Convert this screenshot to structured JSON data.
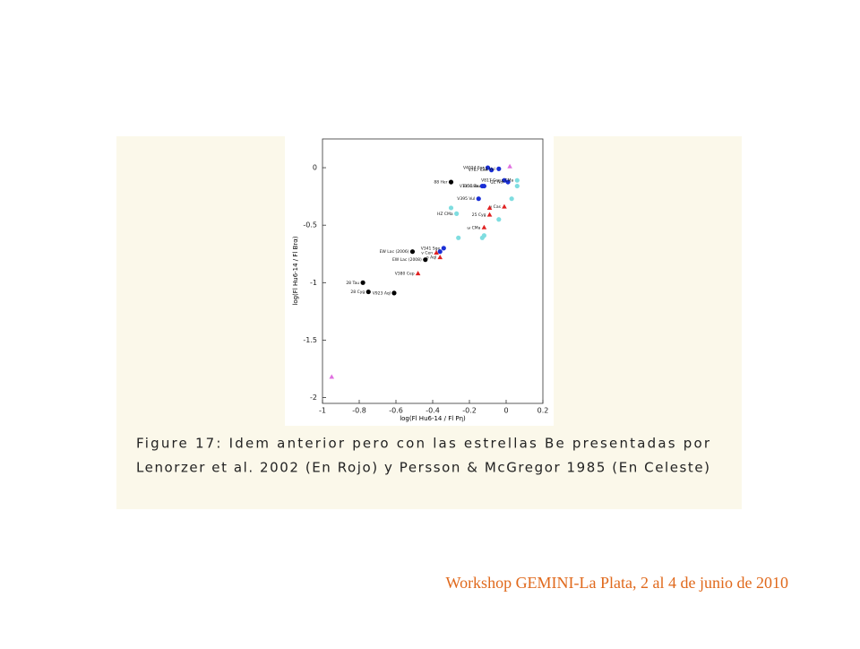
{
  "chart_data": {
    "type": "scatter",
    "x_label": "log(Fl Hu6-14 / Fl Pη)",
    "y_label": "log(Fl Hu6-14 / Fl Brα)",
    "xlim": [
      -1,
      0.2
    ],
    "ylim": [
      -2.05,
      0.25
    ],
    "xticks": [
      -1,
      -0.8,
      -0.6,
      -0.4,
      -0.2,
      0,
      0.2
    ],
    "yticks": [
      0,
      -0.5,
      -1,
      -1.5,
      -2
    ],
    "series": [
      {
        "color": "#000000",
        "marker": "circle",
        "x": [
          -0.3,
          -0.51,
          -0.44,
          -0.78,
          -0.75,
          -0.61
        ],
        "y": [
          -0.125,
          -0.73,
          -0.8,
          -1.0,
          -1.08,
          -1.09
        ],
        "labels": [
          "88 Her",
          "EW Lac (2006)",
          "EW Lac (2008)",
          "28 Tau",
          "28 Cyg",
          "V923 Aql"
        ]
      },
      {
        "color": "#1a2fd6",
        "marker": "circle",
        "x": [
          -0.1,
          -0.08,
          -0.04,
          -0.01,
          -0.13,
          -0.12,
          0.01,
          -0.15,
          -0.34,
          -0.36
        ],
        "y": [
          0.0,
          -0.02,
          -0.01,
          -0.11,
          -0.16,
          -0.16,
          -0.125,
          -0.27,
          -0.7,
          -0.73
        ],
        "labels": [
          "V4024 Sgr",
          "V767 Cen",
          "12 Vul",
          "V817 Cen",
          "BK Cam",
          "V1150 Tau",
          "QZ Nor",
          "V395 Vul",
          "V341 Sge",
          null
        ]
      },
      {
        "color": "#e02020",
        "marker": "triangle",
        "x": [
          -0.48,
          -0.38,
          -0.36,
          -0.01,
          -0.09,
          -0.12,
          -0.09
        ],
        "y": [
          -0.92,
          -0.74,
          -0.78,
          -0.34,
          -0.41,
          -0.52,
          -0.35
        ],
        "labels": [
          "V380 Cep",
          "v Cen",
          "o Aql",
          "γ Cas",
          "25 Cyg",
          "ω CMa",
          null
        ]
      },
      {
        "color": "#7fdde0",
        "marker": "circle",
        "x": [
          -0.27,
          -0.3,
          -0.26,
          -0.13,
          -0.04,
          0.03,
          0.06,
          -0.12,
          0.06
        ],
        "y": [
          -0.4,
          -0.35,
          -0.61,
          -0.61,
          -0.45,
          -0.27,
          -0.16,
          -0.59,
          -0.11
        ],
        "labels": [
          "HZ CMa",
          null,
          null,
          null,
          null,
          null,
          null,
          null,
          "ε CMa"
        ]
      },
      {
        "color": "#e070e0",
        "marker": "triangle",
        "x": [
          0.02,
          -0.95
        ],
        "y": [
          0.01,
          -1.82
        ],
        "labels": [
          null,
          null
        ]
      }
    ]
  },
  "caption": {
    "lines": [
      "Figure 17: Idem anterior pero con las estrellas Be presentadas por",
      "Lenorzer et al. 2002 (En Rojo) y Persson & McGregor 1985 (En Celeste)"
    ]
  },
  "footer": "Workshop GEMINI-La Plata, 2 al 4 de junio de 2010"
}
